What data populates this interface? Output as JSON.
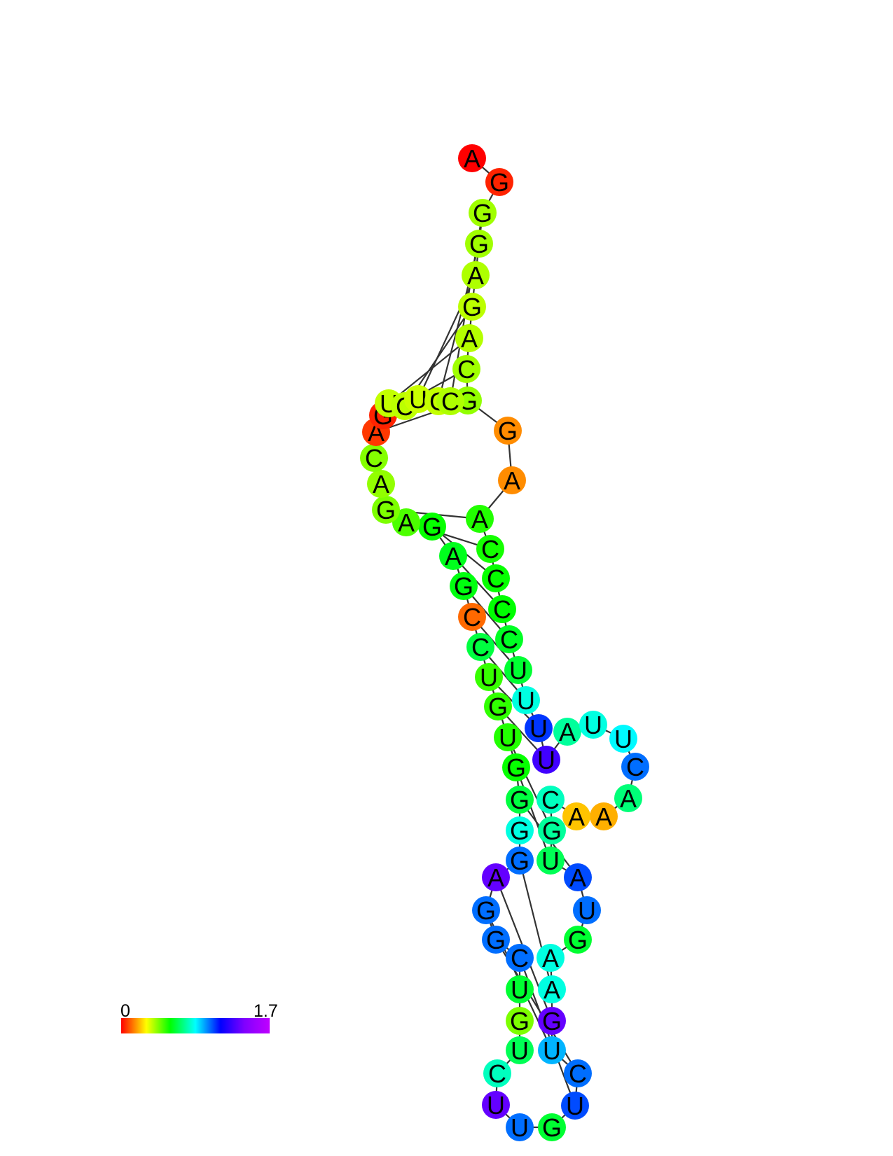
{
  "colorbar": {
    "min_label": "0",
    "max_label": "1.7",
    "min": 0,
    "max": 1.7
  },
  "sequence": [
    "A",
    "G",
    "G",
    "G",
    "A",
    "G",
    "A",
    "C",
    "G",
    "G",
    "A",
    "A",
    "C",
    "C",
    "C",
    "C",
    "U",
    "U",
    "U",
    "U",
    "A",
    "U",
    "U",
    "C",
    "A",
    "A",
    "A",
    "C",
    "G",
    "U",
    "A",
    "U",
    "G",
    "A",
    "A",
    "G",
    "U",
    "C",
    "U",
    "G",
    "U",
    "U",
    "C",
    "U",
    "G",
    "U",
    "C",
    "G",
    "G",
    "A",
    "G",
    "G",
    "G",
    "G",
    "U",
    "G",
    "U",
    "C",
    "C",
    "G",
    "A",
    "G",
    "A",
    "G",
    "A",
    "C",
    "A",
    "G",
    "U",
    "C",
    "U",
    "C",
    "C"
  ],
  "values": [
    0.0,
    0.05,
    0.5,
    0.5,
    0.48,
    0.46,
    0.47,
    0.5,
    0.52,
    0.2,
    0.2,
    0.68,
    0.7,
    0.72,
    0.73,
    0.78,
    0.8,
    1.05,
    1.38,
    1.55,
    0.95,
    1.05,
    1.1,
    1.3,
    0.9,
    0.25,
    0.28,
    1.0,
    0.95,
    0.85,
    1.35,
    1.3,
    0.8,
    1.05,
    1.05,
    1.6,
    1.2,
    1.3,
    1.35,
    0.8,
    1.3,
    1.6,
    1.0,
    0.85,
    0.55,
    0.8,
    1.3,
    1.3,
    1.3,
    1.6,
    1.3,
    1.05,
    0.82,
    0.72,
    0.68,
    0.66,
    0.65,
    0.82,
    0.15,
    0.75,
    0.77,
    0.72,
    0.62,
    0.55,
    0.52,
    0.54,
    0.08,
    0.05,
    0.45,
    0.46,
    0.44,
    0.45,
    0.48
  ]
}
